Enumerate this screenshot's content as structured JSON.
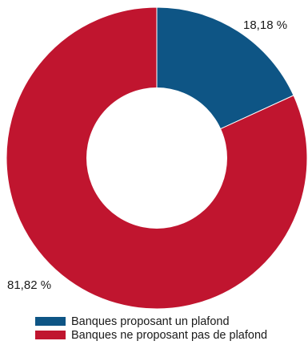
{
  "chart_data": {
    "type": "pie",
    "donut": true,
    "title": "",
    "categories": [
      "Banques proposant un plafond",
      "Banques ne proposant pas de plafond"
    ],
    "values": [
      18.18,
      81.82
    ],
    "value_labels": [
      "18,18 %",
      "81,82 %"
    ],
    "colors": [
      "#0e5585",
      "#c0152f"
    ],
    "legend": {
      "placement": "bottom",
      "entries": [
        "Banques proposant un plafond",
        "Banques ne proposant pas de plafond"
      ]
    }
  }
}
